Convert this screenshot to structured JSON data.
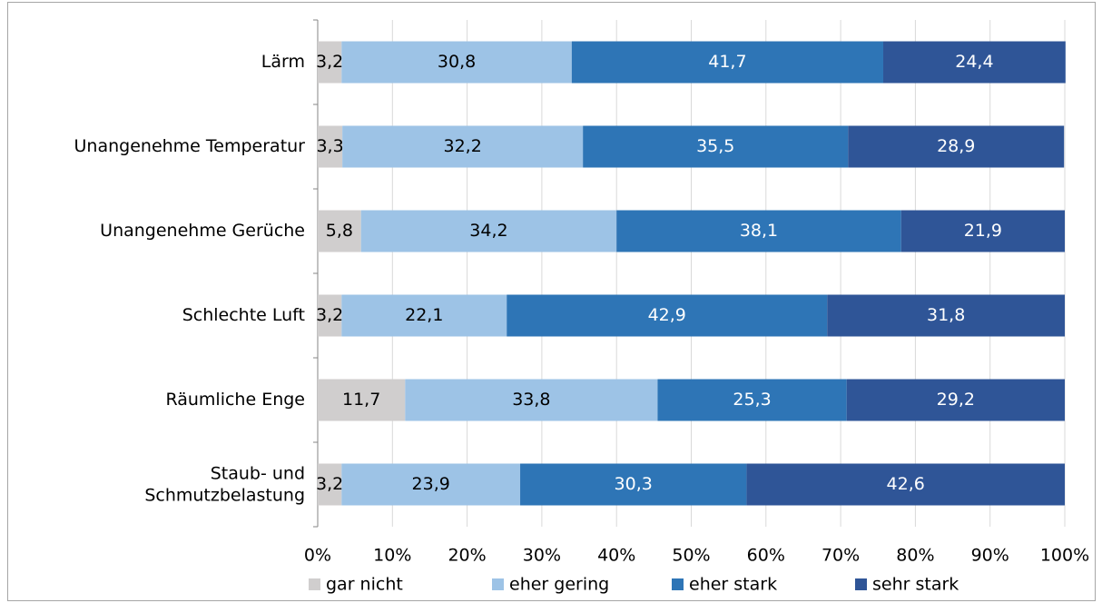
{
  "chart_data": {
    "type": "stacked_bar",
    "orientation": "horizontal",
    "categories": [
      "Lärm",
      "Unangenehme Temperatur",
      "Unangenehme Gerüche",
      "Schlechte Luft",
      "Räumliche Enge",
      "Staub- und Schmutzbelastung"
    ],
    "series": [
      {
        "name": "gar nicht",
        "color": "#d0cece",
        "label_color": "#000000",
        "values": [
          3.2,
          3.3,
          5.8,
          3.2,
          11.7,
          3.2
        ],
        "value_labels": [
          "3,2",
          "3,3",
          "5,8",
          "3,2",
          "11,7",
          "3,2"
        ]
      },
      {
        "name": "eher gering",
        "color": "#9dc3e6",
        "label_color": "#000000",
        "values": [
          30.8,
          32.2,
          34.2,
          22.1,
          33.8,
          23.9
        ],
        "value_labels": [
          "30,8",
          "32,2",
          "34,2",
          "22,1",
          "33,8",
          "23,9"
        ]
      },
      {
        "name": "eher stark",
        "color": "#2e75b6",
        "label_color": "#ffffff",
        "values": [
          41.7,
          35.5,
          38.1,
          42.9,
          25.3,
          30.3
        ],
        "value_labels": [
          "41,7",
          "35,5",
          "38,1",
          "42,9",
          "25,3",
          "30,3"
        ]
      },
      {
        "name": "sehr stark",
        "color": "#2f5597",
        "label_color": "#ffffff",
        "values": [
          24.4,
          28.9,
          21.9,
          31.8,
          29.2,
          42.6
        ],
        "value_labels": [
          "24,4",
          "28,9",
          "21,9",
          "31,8",
          "29,2",
          "42,6"
        ]
      }
    ],
    "xlim": [
      0,
      100
    ],
    "xticks": [
      {
        "value": 0,
        "label": "0%"
      },
      {
        "value": 10,
        "label": "10%"
      },
      {
        "value": 20,
        "label": "20%"
      },
      {
        "value": 30,
        "label": "30%"
      },
      {
        "value": 40,
        "label": "40%"
      },
      {
        "value": 50,
        "label": "50%"
      },
      {
        "value": 60,
        "label": "60%"
      },
      {
        "value": 70,
        "label": "70%"
      },
      {
        "value": 80,
        "label": "80%"
      },
      {
        "value": 90,
        "label": "90%"
      },
      {
        "value": 100,
        "label": "100%"
      }
    ],
    "grid": true,
    "legend": "bottom"
  }
}
